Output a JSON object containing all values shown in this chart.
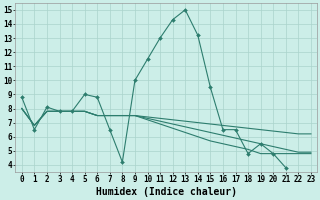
{
  "xlabel": "Humidex (Indice chaleur)",
  "ylabel": "",
  "xlim": [
    -0.5,
    23.5
  ],
  "ylim": [
    3.5,
    15.5
  ],
  "xticks": [
    0,
    1,
    2,
    3,
    4,
    5,
    6,
    7,
    8,
    9,
    10,
    11,
    12,
    13,
    14,
    15,
    16,
    17,
    18,
    19,
    20,
    21,
    22,
    23
  ],
  "yticks": [
    4,
    5,
    6,
    7,
    8,
    9,
    10,
    11,
    12,
    13,
    14,
    15
  ],
  "bg_color": "#cceee8",
  "grid_color": "#aad4cc",
  "line_color": "#2d7d6e",
  "lines": [
    {
      "x": [
        0,
        1,
        2,
        3,
        4,
        5,
        6,
        7,
        8,
        9,
        10,
        11,
        12,
        13,
        14,
        15,
        16,
        17,
        18,
        19,
        20,
        21
      ],
      "y": [
        8.8,
        6.5,
        8.1,
        7.8,
        7.8,
        9.0,
        8.8,
        6.5,
        4.2,
        10.0,
        11.5,
        13.0,
        14.3,
        15.0,
        13.2,
        9.5,
        6.5,
        6.5,
        4.8,
        5.5,
        4.8,
        3.8
      ],
      "has_markers": true
    },
    {
      "x": [
        0,
        1,
        2,
        3,
        4,
        5,
        6,
        7,
        8,
        9,
        10,
        11,
        12,
        13,
        14,
        15,
        16,
        17,
        18,
        19,
        20,
        21,
        22,
        23
      ],
      "y": [
        8.0,
        6.8,
        7.8,
        7.8,
        7.8,
        7.8,
        7.5,
        7.5,
        7.5,
        7.5,
        7.4,
        7.3,
        7.2,
        7.1,
        7.0,
        6.9,
        6.8,
        6.7,
        6.6,
        6.5,
        6.4,
        6.3,
        6.2,
        6.2
      ],
      "has_markers": false
    },
    {
      "x": [
        0,
        1,
        2,
        3,
        4,
        5,
        6,
        7,
        8,
        9,
        10,
        11,
        12,
        13,
        14,
        15,
        16,
        17,
        18,
        19,
        20,
        21,
        22,
        23
      ],
      "y": [
        8.0,
        6.8,
        7.8,
        7.8,
        7.8,
        7.8,
        7.5,
        7.5,
        7.5,
        7.5,
        7.3,
        7.1,
        6.9,
        6.7,
        6.5,
        6.3,
        6.1,
        5.9,
        5.7,
        5.5,
        5.3,
        5.1,
        4.9,
        4.9
      ],
      "has_markers": false
    },
    {
      "x": [
        0,
        1,
        2,
        3,
        4,
        5,
        6,
        7,
        8,
        9,
        10,
        11,
        12,
        13,
        14,
        15,
        16,
        17,
        18,
        19,
        20,
        21,
        22,
        23
      ],
      "y": [
        8.0,
        6.8,
        7.8,
        7.8,
        7.8,
        7.8,
        7.5,
        7.5,
        7.5,
        7.5,
        7.2,
        6.9,
        6.6,
        6.3,
        6.0,
        5.7,
        5.5,
        5.3,
        5.1,
        4.8,
        4.8,
        4.8,
        4.8,
        4.8
      ],
      "has_markers": false
    }
  ],
  "tick_fontsize": 5.5,
  "xlabel_fontsize": 7.0,
  "figsize": [
    3.2,
    2.0
  ],
  "dpi": 100
}
